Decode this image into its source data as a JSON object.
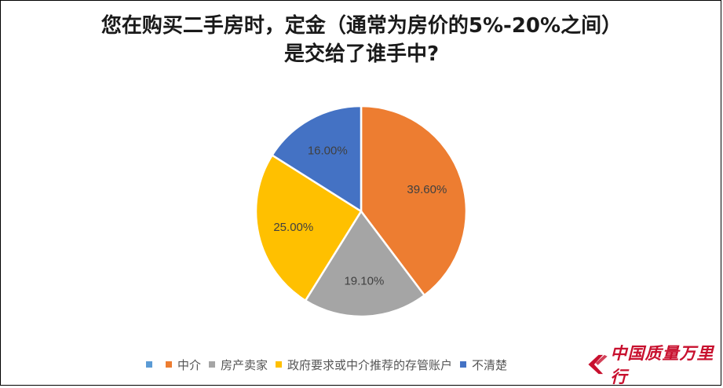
{
  "chart_data": {
    "type": "pie",
    "title_line1": "您在购买二手房时，定金（通常为房价的5%-20%之间）",
    "title_line2": "是交给了谁手中?",
    "slices": [
      {
        "label": "",
        "value": 0,
        "color": "#5b9bd5"
      },
      {
        "label": "中介",
        "value": 39.6,
        "display": "39.60%",
        "color": "#ed7d31"
      },
      {
        "label": "房产卖家",
        "value": 19.1,
        "display": "19.10%",
        "color": "#a5a5a5"
      },
      {
        "label": "政府要求或中介推荐的存管账户",
        "value": 25.0,
        "display": "25.00%",
        "color": "#ffc000"
      },
      {
        "label": "不清楚",
        "value": 16.0,
        "display": "16.00%",
        "color": "#4472c4"
      }
    ],
    "legend_position": "bottom"
  },
  "watermark": {
    "text": "中国质量万里行",
    "color": "#c8102e"
  }
}
